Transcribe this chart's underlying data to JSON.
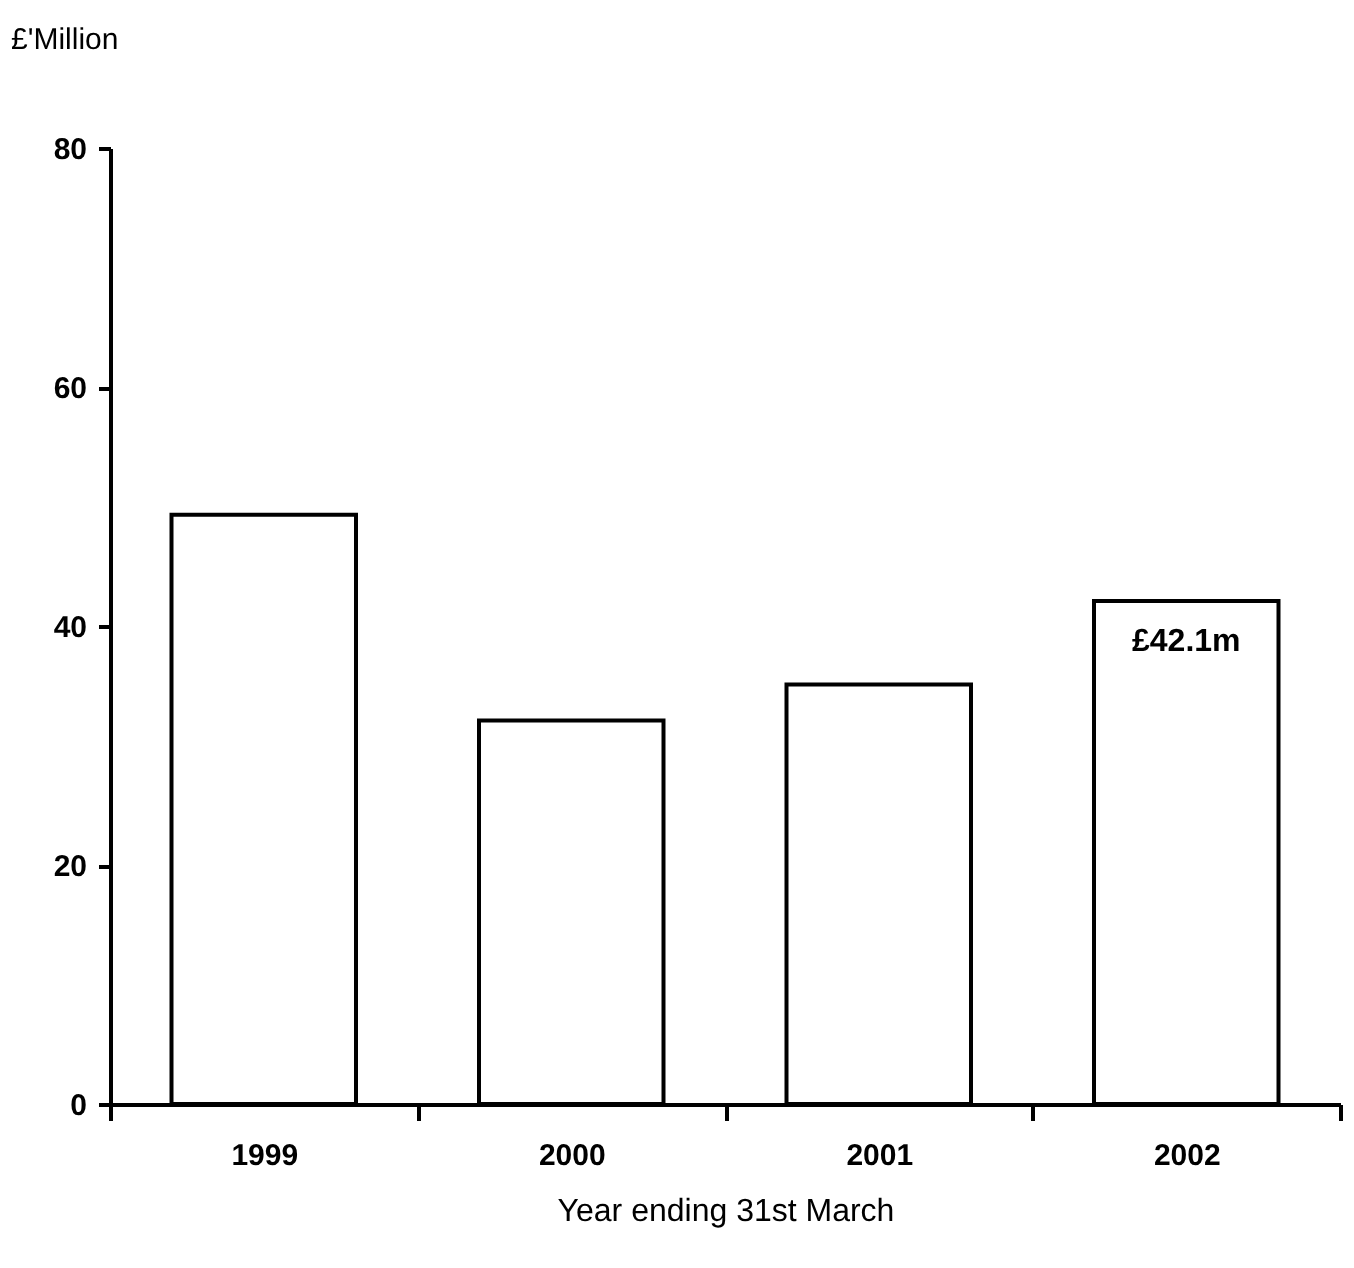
{
  "chart_data": {
    "type": "bar",
    "ylabel": "£'Million",
    "xlabel": "Year ending 31st March",
    "categories": [
      "1999",
      "2000",
      "2001",
      "2002"
    ],
    "values": [
      49.3,
      32.1,
      35.1,
      42.1
    ],
    "value_labels": [
      null,
      null,
      null,
      "£42.1m"
    ],
    "color": "#ffffff",
    "ylim": [
      0,
      80
    ],
    "yticks": [
      0,
      20,
      40,
      60,
      80
    ],
    "grid": false
  }
}
